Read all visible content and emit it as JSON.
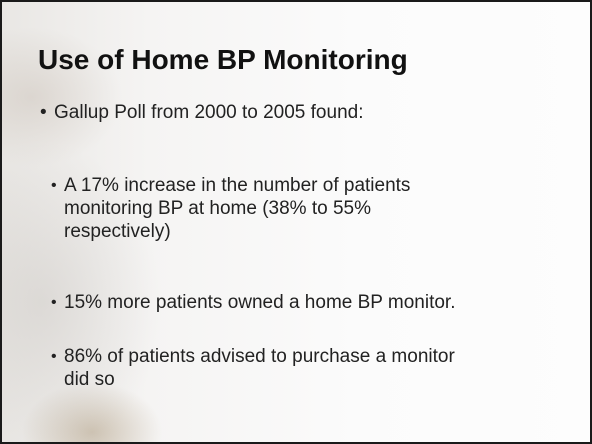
{
  "slide": {
    "title": "Use of Home BP Monitoring",
    "bullets": [
      {
        "lines": [
          "Gallup Poll from 2000 to 2005 found:"
        ],
        "sub_bullets": [
          {
            "lines": [
              "A 17% increase in the number of patients",
              "monitoring BP at home (38% to 55%",
              "respectively)"
            ]
          },
          {
            "lines": [
              "15% more patients owned a home BP monitor."
            ]
          },
          {
            "lines": [
              "86% of patients advised to purchase a monitor",
              "did so"
            ]
          }
        ]
      }
    ]
  }
}
